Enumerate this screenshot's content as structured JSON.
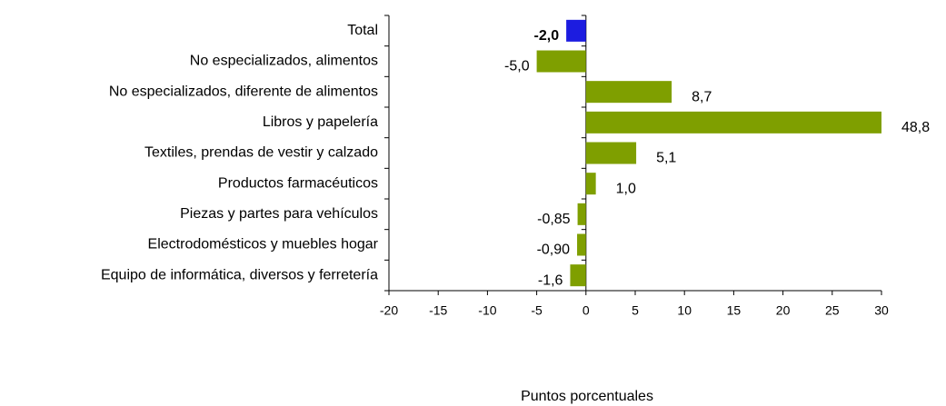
{
  "chart_data": {
    "type": "barh",
    "x_label": "Puntos porcentuales",
    "categories": [
      "Total",
      "No especializados, alimentos",
      "No especializados, diferente de alimentos",
      "Libros y papelería",
      "Textiles, prendas de vestir y calzado",
      "Productos farmacéuticos",
      "Piezas y partes para vehículos",
      "Electrodomésticos y muebles hogar",
      "Equipo de informática, diversos y ferretería"
    ],
    "values": [
      -2.0,
      -5.0,
      8.7,
      48.8,
      5.1,
      1.0,
      -0.85,
      -0.9,
      -1.6
    ],
    "value_labels": [
      "-2,0",
      "-5,0",
      "8,7",
      "48,8",
      "5,1",
      "1,0",
      "-0,85",
      "-0,90",
      "-1,6"
    ],
    "colors": [
      "#1c1ce0",
      "#7f9f00",
      "#7f9f00",
      "#7f9f00",
      "#7f9f00",
      "#7f9f00",
      "#7f9f00",
      "#7f9f00",
      "#7f9f00"
    ],
    "xlim": [
      -20,
      30
    ],
    "xticks": [
      -20,
      -15,
      -10,
      -5,
      0,
      5,
      10,
      15,
      20,
      25,
      30
    ]
  }
}
